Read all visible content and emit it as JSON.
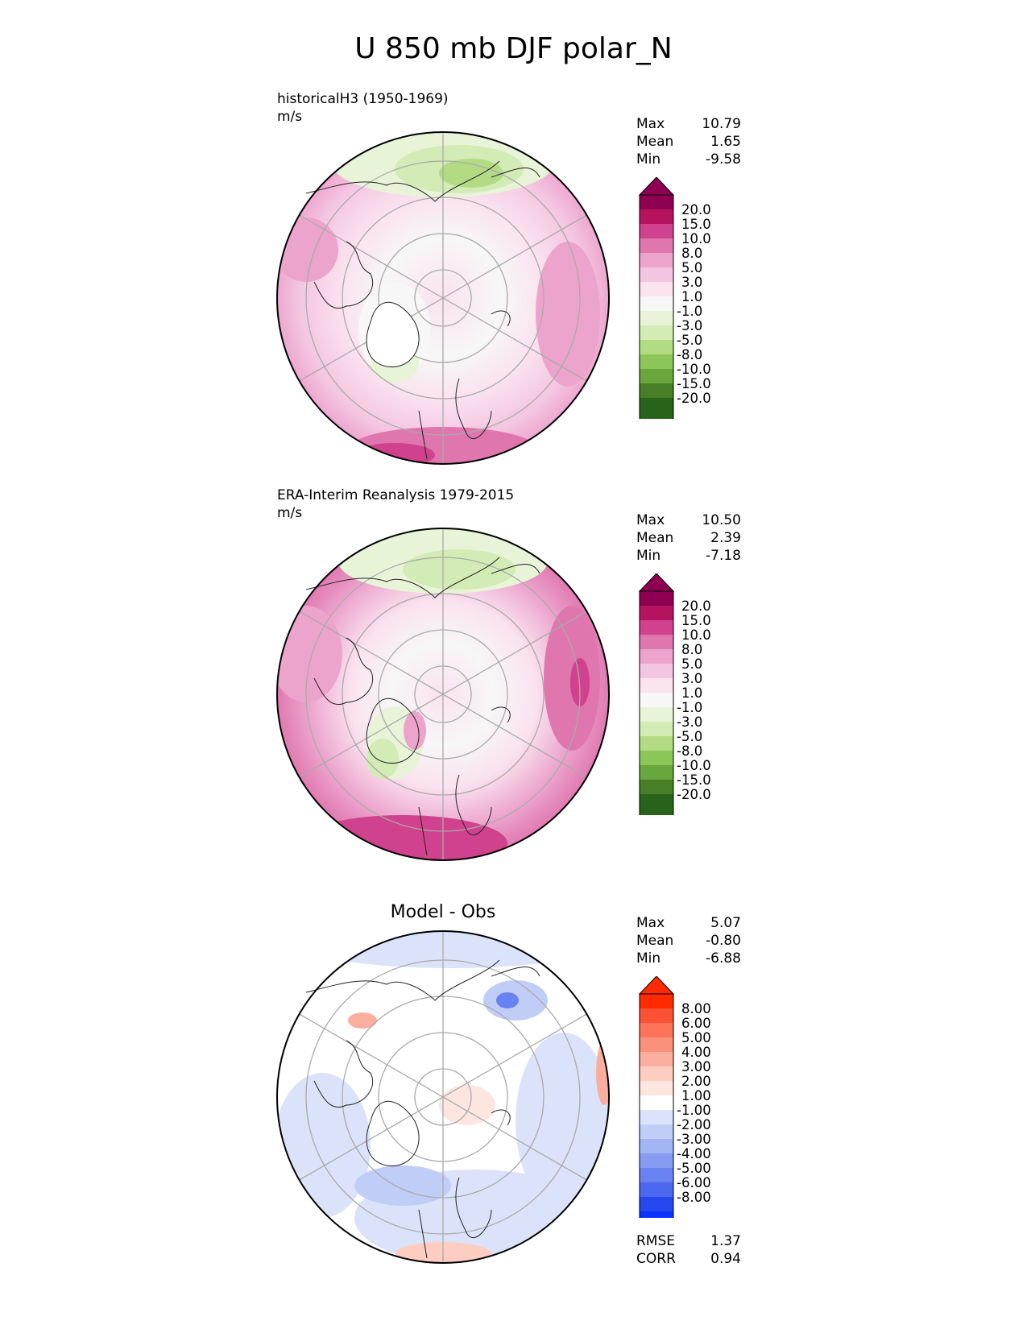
{
  "title": "U 850 mb DJF polar_N",
  "panels": [
    {
      "id": "test",
      "title": "historicalH3 (1950-1969)",
      "units": "m/s",
      "stats": {
        "max_label": "Max",
        "max": "10.79",
        "mean_label": "Mean",
        "mean": "1.65",
        "min_label": "Min",
        "min": "-9.58"
      },
      "colorbar": {
        "labels": [
          "20.0",
          "15.0",
          "10.0",
          "8.0",
          "5.0",
          "3.0",
          "1.0",
          "-1.0",
          "-3.0",
          "-5.0",
          "-8.0",
          "-10.0",
          "-15.0",
          "-20.0"
        ],
        "colors": [
          "#8e0152",
          "#b5135f",
          "#d0428d",
          "#df76ae",
          "#eca4cd",
          "#f4c5e1",
          "#fae2ef",
          "#f7f7f7",
          "#e8f4d8",
          "#d3ebb4",
          "#b3db84",
          "#8cc659",
          "#68a73b",
          "#477e26",
          "#276419",
          "#276419"
        ],
        "top_color": "#8e0152",
        "bottom_color": "#276419"
      }
    },
    {
      "id": "reference",
      "title": "ERA-Interim Reanalysis 1979-2015",
      "units": "m/s",
      "stats": {
        "max_label": "Max",
        "max": "10.50",
        "mean_label": "Mean",
        "mean": "2.39",
        "min_label": "Min",
        "min": "-7.18"
      },
      "colorbar": {
        "labels": [
          "20.0",
          "15.0",
          "10.0",
          "8.0",
          "5.0",
          "3.0",
          "1.0",
          "-1.0",
          "-3.0",
          "-5.0",
          "-8.0",
          "-10.0",
          "-15.0",
          "-20.0"
        ],
        "colors": [
          "#8e0152",
          "#b5135f",
          "#d0428d",
          "#df76ae",
          "#eca4cd",
          "#f4c5e1",
          "#fae2ef",
          "#f7f7f7",
          "#e8f4d8",
          "#d3ebb4",
          "#b3db84",
          "#8cc659",
          "#68a73b",
          "#477e26",
          "#276419",
          "#276419"
        ],
        "top_color": "#8e0152",
        "bottom_color": "#276419"
      }
    },
    {
      "id": "diff",
      "title": "Model - Obs",
      "stats": {
        "max_label": "Max",
        "max": "5.07",
        "mean_label": "Mean",
        "mean": "-0.80",
        "min_label": "Min",
        "min": "-6.88"
      },
      "extra_stats": {
        "rmse_label": "RMSE",
        "rmse": "1.37",
        "corr_label": "CORR",
        "corr": "0.94"
      },
      "colorbar": {
        "labels": [
          "8.00",
          "6.00",
          "5.00",
          "4.00",
          "3.00",
          "2.00",
          "1.00",
          "-1.00",
          "-2.00",
          "-3.00",
          "-4.00",
          "-5.00",
          "-6.00",
          "-8.00"
        ],
        "colors": [
          "#ff2a00",
          "#fc5233",
          "#fd7459",
          "#fb907b",
          "#fbae9e",
          "#fdcdc2",
          "#fde6e0",
          "#ffffff",
          "#dbe3fb",
          "#c0cdf7",
          "#a3b5f5",
          "#869cf3",
          "#6982f1",
          "#4b67f0",
          "#2448ee",
          "#0a33ff"
        ],
        "top_color": "#ff2a00",
        "bottom_color": "#0a33ff"
      }
    }
  ]
}
